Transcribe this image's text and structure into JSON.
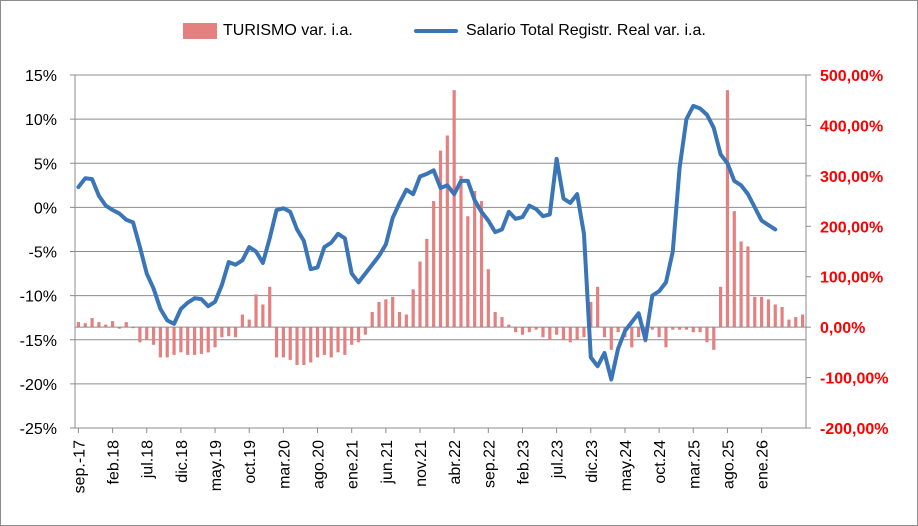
{
  "chart_data": {
    "type": "bar-line-combo",
    "legend": {
      "bar_series": "TURISMO var. i.a.",
      "line_series": "Salario Total Registr. Real var. i.a."
    },
    "colors": {
      "bar": "#e58080",
      "line": "#3a75b8",
      "right_axis": "#ff0000",
      "grid": "#8c8c8c"
    },
    "left_axis": {
      "min": -25,
      "max": 15,
      "step": 5,
      "tick_labels": [
        "15%",
        "10%",
        "5%",
        "0%",
        "-5%",
        "-10%",
        "-15%",
        "-20%",
        "-25%"
      ]
    },
    "right_axis": {
      "min": -200,
      "max": 500,
      "step": 100,
      "tick_labels": [
        "500,00%",
        "400,00%",
        "300,00%",
        "200,00%",
        "100,00%",
        "0,00%",
        "-100,00%",
        "-200,00%"
      ]
    },
    "x_labels": [
      "sep.-17",
      "feb.18",
      "jul.18",
      "dic.18",
      "may.19",
      "oct.19",
      "mar.20",
      "ago.20",
      "ene.21",
      "jun.21",
      "nov.21",
      "abr.22",
      "sep.22",
      "feb.23",
      "jul.23",
      "dic.23",
      "may.24",
      "oct.24",
      "mar.25",
      "ago.25",
      "ene.26"
    ],
    "label_every": 5,
    "series": [
      {
        "name": "TURISMO var. i.a.",
        "axis": "right",
        "values": [
          10,
          8,
          18,
          10,
          5,
          12,
          -3,
          10,
          0,
          -30,
          -25,
          -35,
          -60,
          -60,
          -55,
          -50,
          -55,
          -55,
          -53,
          -50,
          -40,
          -20,
          -18,
          -20,
          25,
          15,
          65,
          45,
          80,
          -60,
          -60,
          -65,
          -75,
          -75,
          -70,
          -60,
          -55,
          -60,
          -50,
          -55,
          -35,
          -30,
          -15,
          30,
          50,
          55,
          60,
          30,
          25,
          75,
          130,
          175,
          250,
          350,
          380,
          470,
          300,
          220,
          270,
          250,
          115,
          30,
          20,
          5,
          -10,
          -15,
          -10,
          -5,
          -20,
          -25,
          -15,
          -25,
          -30,
          -25,
          -20,
          50,
          80,
          -20,
          -45,
          -10,
          -20,
          -40,
          -20,
          -30,
          -5,
          -20,
          -40,
          -5,
          -5,
          -5,
          -10,
          -10,
          -30,
          -45,
          80,
          470,
          230,
          170,
          160,
          60,
          60,
          55,
          45,
          40,
          15,
          20,
          25
        ]
      },
      {
        "name": "Salario Total Registr. Real var. i.a.",
        "axis": "left",
        "values": [
          2.3,
          3.3,
          3.2,
          1.3,
          0.2,
          -0.3,
          -0.7,
          -1.4,
          -1.7,
          -4.5,
          -7.5,
          -9.2,
          -11.5,
          -12.8,
          -13.2,
          -11.5,
          -10.8,
          -10.3,
          -10.4,
          -11.2,
          -10.7,
          -8.8,
          -6.2,
          -6.5,
          -6.0,
          -4.5,
          -5.0,
          -6.3,
          -3.5,
          -0.3,
          -0.1,
          -0.5,
          -2.5,
          -3.8,
          -7.0,
          -6.8,
          -4.5,
          -4.0,
          -3.0,
          -3.5,
          -7.5,
          -8.5,
          -7.5,
          -6.5,
          -5.5,
          -4.2,
          -1.2,
          0.5,
          2.0,
          1.5,
          3.5,
          3.8,
          4.2,
          2.2,
          2.5,
          1.5,
          3.0,
          3.0,
          0.8,
          -0.5,
          -1.5,
          -2.8,
          -2.5,
          -0.5,
          -1.3,
          -1.1,
          0.2,
          -0.2,
          -1.0,
          -0.8,
          5.5,
          1.0,
          0.5,
          1.5,
          -3.0,
          -17.0,
          -18.0,
          -16.5,
          -19.5,
          -16.0,
          -14.0,
          -13.0,
          -12.0,
          -15.0,
          -10.0,
          -9.5,
          -8.5,
          -5.0,
          4.5,
          10.0,
          11.5,
          11.2,
          10.5,
          9.0,
          6.0,
          5.0,
          3.0,
          2.5,
          1.5,
          0.0,
          -1.5,
          -2.0,
          -2.5
        ]
      }
    ]
  }
}
